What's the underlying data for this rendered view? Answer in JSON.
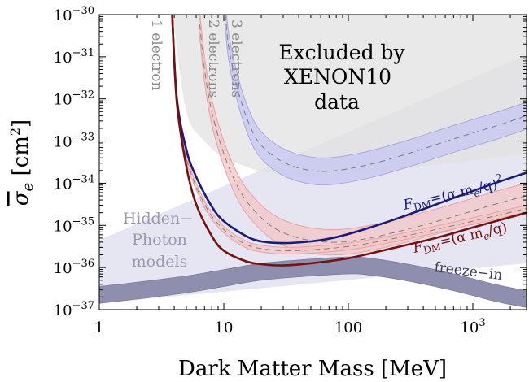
{
  "chart_data": {
    "type": "line",
    "xlabel": "Dark Matter Mass [MeV]",
    "ylabel_main": "σ",
    "ylabel_sub": "e",
    "ylabel_unit": "[cm",
    "ylabel_unit_exp": "2",
    "ylabel_unit_close": "]",
    "x_scale": "log",
    "y_scale": "log",
    "xlim": [
      1,
      2700
    ],
    "ylim": [
      1e-37,
      1e-30
    ],
    "x_ticks": [
      {
        "value": 1,
        "base": "1",
        "exp": ""
      },
      {
        "value": 10,
        "base": "10",
        "exp": ""
      },
      {
        "value": 100,
        "base": "100",
        "exp": ""
      },
      {
        "value": 1000,
        "base": "10",
        "exp": "3"
      }
    ],
    "y_ticks": [
      {
        "value": 1e-30,
        "base": "10",
        "exp": "−30"
      },
      {
        "value": 1e-31,
        "base": "10",
        "exp": "−31"
      },
      {
        "value": 1e-32,
        "base": "10",
        "exp": "−32"
      },
      {
        "value": 1e-33,
        "base": "10",
        "exp": "−33"
      },
      {
        "value": 1e-34,
        "base": "10",
        "exp": "−34"
      },
      {
        "value": 1e-35,
        "base": "10",
        "exp": "−35"
      },
      {
        "value": 1e-36,
        "base": "10",
        "exp": "−36"
      },
      {
        "value": 1e-37,
        "base": "10",
        "exp": "−37"
      }
    ],
    "excluded_region": {
      "label_lines": [
        "Excluded by",
        "XENON10",
        "data"
      ],
      "color": "#e2e2e2",
      "x": [
        3.9,
        5,
        7,
        10,
        15,
        20,
        30,
        50,
        80,
        120,
        200,
        400,
        800,
        1500,
        2700
      ],
      "y_log10": [
        -30,
        -32.3,
        -33.0,
        -33.4,
        -33.6,
        -33.72,
        -33.8,
        -33.85,
        -33.83,
        -33.78,
        -33.7,
        -33.6,
        -33.5,
        -33.4,
        -33.3
      ]
    },
    "hidden_photon_region": {
      "label_lines": [
        "Hidden−",
        "Photon",
        "models"
      ],
      "color": "#e6e6f3",
      "x": [
        1,
        2700
      ],
      "y_upper_log10": [
        -35.35,
        -30.95
      ],
      "y_lower_log10": [
        -36.85,
        -35.9
      ]
    },
    "bands": [
      {
        "name": "1 electron",
        "color": "#7d7d7d",
        "fill": "#f3c4c4",
        "x": [
          3.85,
          4.2,
          5,
          7,
          10,
          15,
          20,
          30,
          50,
          100,
          200,
          500,
          1000,
          2700
        ],
        "center_log10": [
          -30,
          -32.0,
          -33.4,
          -34.5,
          -35.1,
          -35.45,
          -35.55,
          -35.6,
          -35.58,
          -35.5,
          -35.35,
          -35.1,
          -34.9,
          -34.6
        ],
        "half_width_dex": 0.08
      },
      {
        "name": "2 electrons",
        "color": "#7d7d7d",
        "fill": "#f3c4c4",
        "x": [
          6.3,
          7,
          8,
          10,
          13,
          17,
          25,
          40,
          70,
          120,
          250,
          600,
          1500,
          2700
        ],
        "center_log10": [
          -30,
          -31.3,
          -32.3,
          -33.3,
          -34.1,
          -34.6,
          -35.05,
          -35.3,
          -35.4,
          -35.35,
          -35.15,
          -34.85,
          -34.5,
          -34.3
        ],
        "half_width_dex": 0.3
      },
      {
        "name": "3 electrons",
        "color": "#7d7d7d",
        "fill": "#c5c5f3",
        "x": [
          10.3,
          11,
          13,
          16,
          20,
          30,
          50,
          80,
          150,
          300,
          700,
          1500,
          2700
        ],
        "center_log10": [
          -30,
          -30.8,
          -31.8,
          -32.6,
          -33.1,
          -33.5,
          -33.7,
          -33.7,
          -33.55,
          -33.3,
          -32.95,
          -32.65,
          -32.4
        ],
        "half_width_dex": 0.32
      }
    ],
    "curves": [
      {
        "name": "F_DM=(α m_e/q)^2",
        "color": "#1a1a7a",
        "x": [
          3.85,
          4.2,
          5,
          6,
          8,
          10,
          15,
          20,
          30,
          50,
          80,
          150,
          300,
          700,
          1500,
          2700
        ],
        "y_log10": [
          -30,
          -32.0,
          -33.2,
          -33.85,
          -34.55,
          -34.9,
          -35.25,
          -35.38,
          -35.42,
          -35.38,
          -35.28,
          -35.05,
          -34.75,
          -34.35,
          -34.0,
          -33.75
        ]
      },
      {
        "name": "F_DM=(α m_e/q)",
        "color": "#7a0f0f",
        "x": [
          3.85,
          4.2,
          5,
          6,
          8,
          10,
          15,
          20,
          30,
          50,
          100,
          200,
          500,
          1000,
          2700
        ],
        "y_log10": [
          -30,
          -32.1,
          -33.6,
          -34.5,
          -35.25,
          -35.6,
          -35.85,
          -35.92,
          -35.95,
          -35.9,
          -35.78,
          -35.58,
          -35.3,
          -35.05,
          -34.7
        ]
      }
    ],
    "freeze_in": {
      "name": "freeze−in",
      "color": "#8e8eae",
      "x": [
        1,
        2,
        5,
        10,
        20,
        50,
        100,
        150,
        300,
        700,
        1500,
        2700
      ],
      "upper_log10": [
        -36.45,
        -36.35,
        -36.2,
        -36.05,
        -35.9,
        -35.8,
        -35.75,
        -35.78,
        -35.92,
        -36.15,
        -36.4,
        -36.55
      ],
      "lower_log10": [
        -36.85,
        -36.75,
        -36.6,
        -36.45,
        -36.3,
        -36.2,
        -36.15,
        -36.18,
        -36.32,
        -36.55,
        -36.8,
        -36.95
      ]
    },
    "curve_labels": {
      "sq": {
        "f": "F",
        "sub": "DM",
        "eq": "=(α m",
        "sub2": "e",
        "end": "/q)",
        "sup": "2"
      },
      "lin": {
        "f": "F",
        "sub": "DM",
        "eq": "=(α m",
        "sub2": "e",
        "end": "/q)"
      }
    }
  }
}
